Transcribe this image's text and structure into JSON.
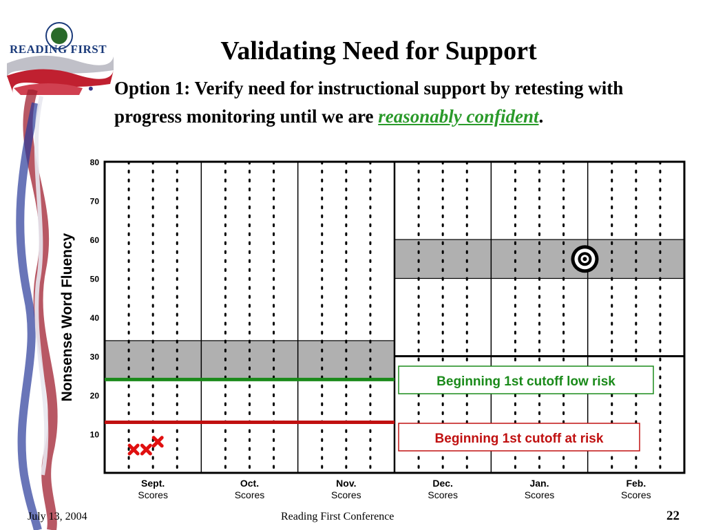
{
  "slide": {
    "logo_text": "READING FIRST",
    "title": "Validating Need for Support",
    "bullet_main": "Option 1: Verify need for instructional support by retesting with progress monitoring until we are ",
    "bullet_emph": "reasonably confident",
    "bullet_end": "."
  },
  "footer": {
    "date": "July 13, 2004",
    "conference": "Reading First Conference",
    "page": "22"
  },
  "chart_data": {
    "type": "scatter",
    "ylabel": "Nonsense Word Fluency",
    "ylim": [
      0,
      80
    ],
    "yticks": [
      "10",
      "20",
      "30",
      "40",
      "50",
      "60",
      "70",
      "80"
    ],
    "periods": [
      {
        "month": "Sept.",
        "sub": "Scores"
      },
      {
        "month": "Oct.",
        "sub": "Scores"
      },
      {
        "month": "Nov.",
        "sub": "Scores"
      },
      {
        "month": "Dec.",
        "sub": "Scores"
      },
      {
        "month": "Jan.",
        "sub": "Scores"
      },
      {
        "month": "Feb.",
        "sub": "Scores"
      }
    ],
    "bands": [
      {
        "x_start": 0,
        "x_end": 3,
        "y_low": 24,
        "y_high": 34,
        "color": "#b0b0b0"
      },
      {
        "x_start": 3,
        "x_end": 6,
        "y_low": 50,
        "y_high": 60,
        "color": "#b0b0b0"
      }
    ],
    "goal_line": {
      "x_start": 3,
      "x_end": 6,
      "y": 30
    },
    "cutoffs": [
      {
        "label": "Beginning 1st cutoff low risk",
        "y": 24,
        "x_start": 0,
        "x_end": 3,
        "color": "#1a8a1a"
      },
      {
        "label": "Beginning 1st cutoff at risk",
        "y": 13,
        "x_start": 0,
        "x_end": 3,
        "color": "#c01010"
      }
    ],
    "scores": [
      {
        "x": 0.3,
        "y": 6
      },
      {
        "x": 0.43,
        "y": 6
      },
      {
        "x": 0.55,
        "y": 8
      }
    ],
    "target": {
      "x": 4.97,
      "y": 55
    },
    "colors": {
      "score_marker": "#e01010",
      "grid": "#000000"
    }
  }
}
